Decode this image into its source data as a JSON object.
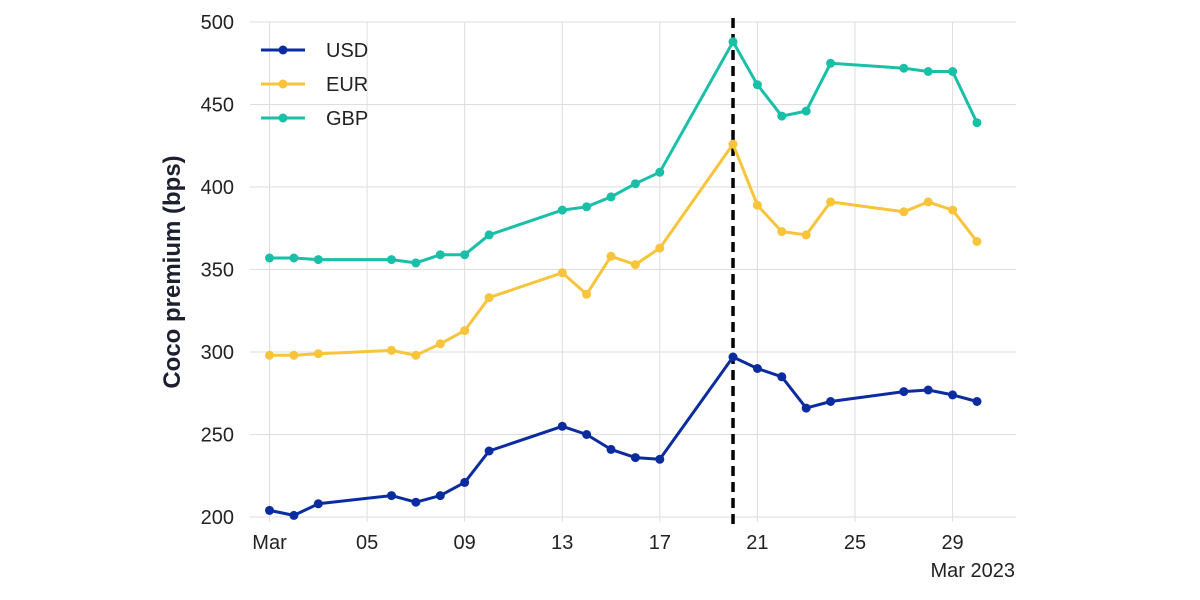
{
  "chart_data": {
    "type": "line",
    "title": "",
    "xlabel": "",
    "ylabel": "Coco premium (bps)",
    "ylim": [
      197,
      500
    ],
    "xlim": [
      -0.8,
      30.6
    ],
    "yticks": [
      200,
      250,
      300,
      350,
      400,
      450,
      500
    ],
    "x_ticks": [
      {
        "x": 0,
        "label": "Mar"
      },
      {
        "x": 4,
        "label": "05"
      },
      {
        "x": 8,
        "label": "09"
      },
      {
        "x": 12,
        "label": "13"
      },
      {
        "x": 16,
        "label": "17"
      },
      {
        "x": 20,
        "label": "21"
      },
      {
        "x": 24,
        "label": "25"
      },
      {
        "x": 28,
        "label": "29"
      }
    ],
    "x_sublabel": "Mar 2023",
    "x_unit": "days since 1 Mar 2023",
    "event_line": {
      "x": 19,
      "style": "dashed",
      "color": "#000000"
    },
    "grid": true,
    "legend_position": "top-left",
    "series": [
      {
        "name": "USD",
        "color": "#0a2c9e",
        "points": [
          [
            0,
            204
          ],
          [
            1,
            201
          ],
          [
            2,
            208
          ],
          [
            5,
            213
          ],
          [
            6,
            209
          ],
          [
            7,
            213
          ],
          [
            8,
            221
          ],
          [
            9,
            240
          ],
          [
            12,
            255
          ],
          [
            13,
            250
          ],
          [
            14,
            241
          ],
          [
            15,
            236
          ],
          [
            16,
            235
          ],
          [
            19,
            297
          ],
          [
            20,
            290
          ],
          [
            21,
            285
          ],
          [
            22,
            266
          ],
          [
            23,
            270
          ],
          [
            26,
            276
          ],
          [
            27,
            277
          ],
          [
            28,
            274
          ],
          [
            29,
            270
          ]
        ]
      },
      {
        "name": "EUR",
        "color": "#f7c43b",
        "points": [
          [
            0,
            298
          ],
          [
            1,
            298
          ],
          [
            2,
            299
          ],
          [
            5,
            301
          ],
          [
            6,
            298
          ],
          [
            7,
            305
          ],
          [
            8,
            313
          ],
          [
            9,
            333
          ],
          [
            12,
            348
          ],
          [
            13,
            335
          ],
          [
            14,
            358
          ],
          [
            15,
            353
          ],
          [
            16,
            363
          ],
          [
            19,
            426
          ],
          [
            20,
            389
          ],
          [
            21,
            373
          ],
          [
            22,
            371
          ],
          [
            23,
            391
          ],
          [
            26,
            385
          ],
          [
            27,
            391
          ],
          [
            28,
            386
          ],
          [
            29,
            367
          ]
        ]
      },
      {
        "name": "GBP",
        "color": "#19bfa7",
        "points": [
          [
            0,
            357
          ],
          [
            1,
            357
          ],
          [
            2,
            356
          ],
          [
            5,
            356
          ],
          [
            6,
            354
          ],
          [
            7,
            359
          ],
          [
            8,
            359
          ],
          [
            9,
            371
          ],
          [
            12,
            386
          ],
          [
            13,
            388
          ],
          [
            14,
            394
          ],
          [
            15,
            402
          ],
          [
            16,
            409
          ],
          [
            19,
            488
          ],
          [
            20,
            462
          ],
          [
            21,
            443
          ],
          [
            22,
            446
          ],
          [
            23,
            475
          ],
          [
            26,
            472
          ],
          [
            27,
            470
          ],
          [
            28,
            470
          ],
          [
            29,
            439
          ]
        ]
      }
    ]
  }
}
